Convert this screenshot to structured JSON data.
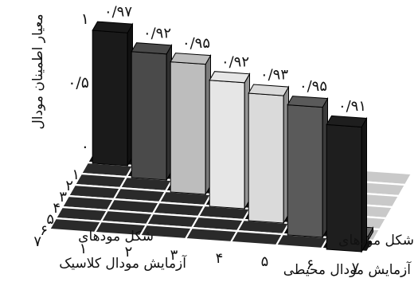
{
  "chart_data": {
    "type": "bar",
    "subtype": "3d-bar-matrix",
    "title": "",
    "ylabel": "معیار اطمینان مودال",
    "ylim": [
      0,
      1
    ],
    "yticks": [
      "۰",
      "۰/۵",
      "۱"
    ],
    "x_axis_label_line1": "شکل مودهای",
    "x_axis_label_line2": "آزمایش مودال کلاسیک",
    "z_axis_label_line1": "شکل مودهای",
    "z_axis_label_line2": "آزمایش مودال محیطی",
    "x_categories": [
      "۱",
      "۲",
      "۳",
      "۴",
      "۵",
      "۶",
      "۷"
    ],
    "z_categories": [
      "۱",
      "۲",
      "۳",
      "۴",
      "۵",
      "۶",
      "۷"
    ],
    "diagonal_values": [
      0.97,
      0.92,
      0.95,
      0.92,
      0.93,
      0.95,
      0.91
    ],
    "diagonal_value_labels": [
      "۰/۹۷",
      "۰/۹۲",
      "۰/۹۵",
      "۰/۹۲",
      "۰/۹۳",
      "۰/۹۵",
      "۰/۹۱"
    ],
    "diagonal_bar_colors": [
      "#1a1a1a",
      "#4a4a4a",
      "#bdbdbd",
      "#e6e6e6",
      "#dadada",
      "#5a5a5a",
      "#1e1e1e"
    ],
    "off_diagonal_note": "off-diagonal values near 0",
    "off_diagonal_small_bar": {
      "x": 7,
      "z": 6,
      "value": 0.03
    }
  }
}
